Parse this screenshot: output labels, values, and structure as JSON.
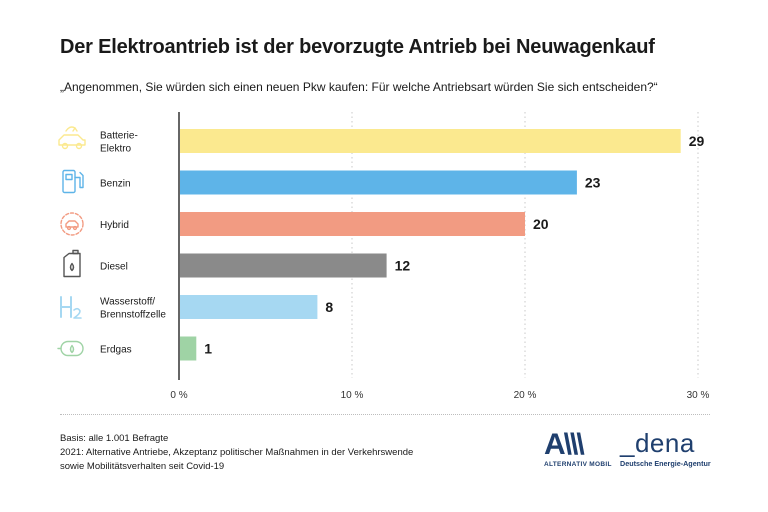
{
  "title": "Der Elektroantrieb ist der bevorzugte Antrieb bei Neuwagenkauf",
  "subtitle": "„Angenommen, Sie würden sich einen neuen Pkw kaufen: Für welche Antriebsart würden Sie sich entscheiden?“",
  "footnotes": {
    "basis": "Basis: alle 1.001 Befragte",
    "source_line1": "2021: Alternative Antriebe, Akzeptanz politischer Maßnahmen in der Verkehrswende",
    "source_line2": "sowie Mobilitätsverhalten seit Covid-19"
  },
  "logos": {
    "am_mark": "A\\\\\\",
    "am_sub": "ALTERNATIV MOBIL",
    "dena_mark": "_dena",
    "dena_sub": "Deutsche Energie-Agentur"
  },
  "chart_data": {
    "type": "bar",
    "orientation": "horizontal",
    "categories": [
      {
        "label": [
          "Batterie-",
          "Elektro"
        ],
        "icon": "electric-car-icon",
        "color": "#fbe98f"
      },
      {
        "label": [
          "Benzin"
        ],
        "icon": "fuel-pump-icon",
        "color": "#5eb4e8"
      },
      {
        "label": [
          "Hybrid"
        ],
        "icon": "hybrid-car-icon",
        "color": "#f29b82"
      },
      {
        "label": [
          "Diesel"
        ],
        "icon": "jerry-can-icon",
        "color": "#8a8a8a"
      },
      {
        "label": [
          "Wasserstoff/",
          "Brennstoffzelle"
        ],
        "icon": "h2-icon",
        "color": "#a6d8f2"
      },
      {
        "label": [
          "Erdgas"
        ],
        "icon": "gas-tank-icon",
        "color": "#9fd3a5"
      }
    ],
    "values": [
      29,
      23,
      20,
      12,
      8,
      1
    ],
    "value_labels": [
      "29",
      "23",
      "20",
      "12",
      "8",
      "1"
    ],
    "xlim": [
      0,
      30
    ],
    "xticks": [
      0,
      10,
      20,
      30
    ],
    "xtick_labels": [
      "0 %",
      "10 %",
      "20 %",
      "30 %"
    ],
    "grid": "vertical dotted"
  }
}
